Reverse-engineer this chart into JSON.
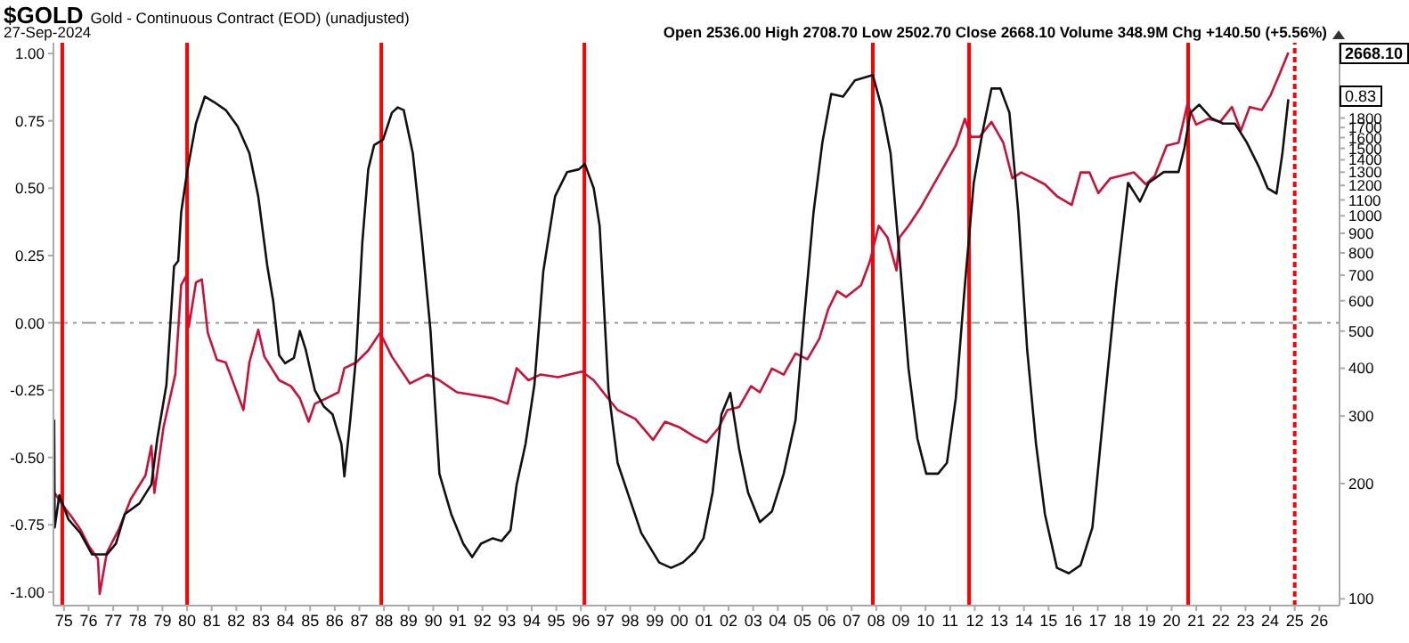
{
  "chart_data": {
    "type": "line",
    "title": "$GOLD",
    "subtitle": "Gold - Continuous Contract (EOD) (unadjusted)",
    "annotations": [
      "27-Sep-2024",
      "Open 2536.00 High 2708.70 Low 2502.70 Close 2668.10 Volume 348.9M Chg +140.50 (+5.56%)",
      "2668.10",
      "0.83"
    ],
    "log": "y2",
    "xlim": [
      1974.57,
      2026.82
    ],
    "xticks": [
      {
        "value": 1975,
        "label": "75"
      },
      {
        "value": 1976,
        "label": "76"
      },
      {
        "value": 1977,
        "label": "77"
      },
      {
        "value": 1978,
        "label": "78"
      },
      {
        "value": 1979,
        "label": "79"
      },
      {
        "value": 1980,
        "label": "80"
      },
      {
        "value": 1981,
        "label": "81"
      },
      {
        "value": 1982,
        "label": "82"
      },
      {
        "value": 1983,
        "label": "83"
      },
      {
        "value": 1984,
        "label": "84"
      },
      {
        "value": 1985,
        "label": "85"
      },
      {
        "value": 1986,
        "label": "86"
      },
      {
        "value": 1987,
        "label": "87"
      },
      {
        "value": 1988,
        "label": "88"
      },
      {
        "value": 1989,
        "label": "89"
      },
      {
        "value": 1990,
        "label": "90"
      },
      {
        "value": 1991,
        "label": "91"
      },
      {
        "value": 1992,
        "label": "92"
      },
      {
        "value": 1993,
        "label": "93"
      },
      {
        "value": 1994,
        "label": "94"
      },
      {
        "value": 1995,
        "label": "95"
      },
      {
        "value": 1996,
        "label": "96"
      },
      {
        "value": 1997,
        "label": "97"
      },
      {
        "value": 1998,
        "label": "98"
      },
      {
        "value": 1999,
        "label": "99"
      },
      {
        "value": 2000,
        "label": "00"
      },
      {
        "value": 2001,
        "label": "01"
      },
      {
        "value": 2002,
        "label": "02"
      },
      {
        "value": 2003,
        "label": "03"
      },
      {
        "value": 2004,
        "label": "04"
      },
      {
        "value": 2005,
        "label": "05"
      },
      {
        "value": 2006,
        "label": "06"
      },
      {
        "value": 2007,
        "label": "07"
      },
      {
        "value": 2008,
        "label": "08"
      },
      {
        "value": 2009,
        "label": "09"
      },
      {
        "value": 2010,
        "label": "10"
      },
      {
        "value": 2011,
        "label": "11"
      },
      {
        "value": 2012,
        "label": "12"
      },
      {
        "value": 2013,
        "label": "13"
      },
      {
        "value": 2014,
        "label": "14"
      },
      {
        "value": 2015,
        "label": "15"
      },
      {
        "value": 2016,
        "label": "16"
      },
      {
        "value": 2017,
        "label": "17"
      },
      {
        "value": 2018,
        "label": "18"
      },
      {
        "value": 2019,
        "label": "19"
      },
      {
        "value": 2020,
        "label": "20"
      },
      {
        "value": 2021,
        "label": "21"
      },
      {
        "value": 2022,
        "label": "22"
      },
      {
        "value": 2023,
        "label": "23"
      },
      {
        "value": 2024,
        "label": "24"
      },
      {
        "value": 2025,
        "label": "25"
      },
      {
        "value": 2026,
        "label": "26"
      }
    ],
    "ylim": [
      -1.05,
      1.04
    ],
    "yticks": [
      {
        "value": 1,
        "label": "1.00"
      },
      {
        "value": 0.75,
        "label": "0.75"
      },
      {
        "value": 0.5,
        "label": "0.50"
      },
      {
        "value": 0.25,
        "label": "0.25"
      },
      {
        "value": 0,
        "label": "0.00"
      },
      {
        "value": -0.25,
        "label": "-0.25"
      },
      {
        "value": -0.5,
        "label": "-0.50"
      },
      {
        "value": -0.75,
        "label": "-0.75"
      },
      {
        "value": -1,
        "label": "-1.00"
      }
    ],
    "y2lim": [
      96,
      2830
    ],
    "y2ticks": [
      100,
      200,
      300,
      400,
      500,
      600,
      700,
      800,
      900,
      1000,
      1100,
      1200,
      1300,
      1400,
      1500,
      1600,
      1700,
      1800
    ],
    "ref_lines": [
      {
        "axis": "y",
        "value": 0,
        "color": "#999999",
        "line_style": "dashed"
      },
      {
        "axis": "x",
        "value": 1974.93,
        "color": "#ff0000",
        "line_style": "solid"
      },
      {
        "axis": "x",
        "value": 1980.0,
        "color": "#ff0000",
        "line_style": "solid"
      },
      {
        "axis": "x",
        "value": 1987.89,
        "color": "#ff0000",
        "line_style": "solid"
      },
      {
        "axis": "x",
        "value": 1996.14,
        "color": "#ff0000",
        "line_style": "solid"
      },
      {
        "axis": "x",
        "value": 2007.86,
        "color": "#ff0000",
        "line_style": "solid"
      },
      {
        "axis": "x",
        "value": 2011.77,
        "color": "#ff0000",
        "line_style": "solid"
      },
      {
        "axis": "x",
        "value": 2020.67,
        "color": "#ff0000",
        "line_style": "solid"
      },
      {
        "axis": "x",
        "value": 2025.0,
        "color": "#ff0000",
        "line_style": "dotted"
      }
    ],
    "series": [
      {
        "axis": "y2",
        "color": "#cc1038",
        "x": [
          1974.62,
          1974.93,
          1975.3,
          1975.66,
          1976.02,
          1976.38,
          1976.45,
          1976.74,
          1977.23,
          1977.71,
          1978.31,
          1978.55,
          1978.67,
          1979.04,
          1979.52,
          1979.76,
          1979.95,
          1980.07,
          1980.36,
          1980.6,
          1980.84,
          1981.21,
          1981.57,
          1981.93,
          1982.29,
          1982.53,
          1982.89,
          1983.14,
          1983.74,
          1984.22,
          1984.58,
          1984.94,
          1985.19,
          1985.67,
          1986.15,
          1986.39,
          1986.87,
          1987.36,
          1987.84,
          1988.32,
          1989.05,
          1989.77,
          1990.25,
          1990.97,
          1991.7,
          1992.42,
          1993.02,
          1993.39,
          1993.87,
          1994.35,
          1995.07,
          1996.04,
          1996.52,
          1997.0,
          1997.49,
          1998.21,
          1998.93,
          1999.42,
          2000.02,
          2000.62,
          2001.1,
          2001.59,
          2001.95,
          2002.43,
          2002.91,
          2003.27,
          2003.76,
          2004.24,
          2004.72,
          2005.2,
          2005.69,
          2006.05,
          2006.41,
          2006.77,
          2007.38,
          2007.74,
          2008.1,
          2008.46,
          2008.82,
          2008.94,
          2009.31,
          2009.79,
          2010.27,
          2010.75,
          2011.23,
          2011.6,
          2011.84,
          2012.2,
          2012.68,
          2013.16,
          2013.53,
          2013.89,
          2014.37,
          2014.85,
          2015.34,
          2015.94,
          2016.3,
          2016.66,
          2017.02,
          2017.51,
          2017.99,
          2018.47,
          2018.95,
          2019.32,
          2019.8,
          2020.28,
          2020.64,
          2021.0,
          2021.49,
          2021.97,
          2022.45,
          2022.81,
          2023.17,
          2023.66,
          2024.02,
          2024.38,
          2024.74
        ],
        "values": [
          189,
          176,
          164,
          152,
          137,
          127,
          103,
          132,
          152,
          182,
          210,
          251,
          189,
          280,
          385,
          659,
          695,
          513,
          670,
          682,
          495,
          421,
          414,
          359,
          311,
          414,
          504,
          429,
          372,
          359,
          334,
          290,
          323,
          334,
          346,
          400,
          414,
          445,
          495,
          429,
          365,
          385,
          372,
          346,
          340,
          334,
          323,
          400,
          372,
          385,
          379,
          392,
          372,
          340,
          311,
          295,
          260,
          290,
          280,
          265,
          256,
          279,
          311,
          317,
          359,
          346,
          399,
          385,
          437,
          422,
          478,
          571,
          636,
          614,
          659,
          760,
          942,
          877,
          720,
          877,
          942,
          1048,
          1188,
          1346,
          1525,
          1791,
          1608,
          1608,
          1759,
          1552,
          1253,
          1298,
          1253,
          1208,
          1125,
          1067,
          1298,
          1298,
          1146,
          1253,
          1274,
          1298,
          1208,
          1274,
          1525,
          1552,
          1959,
          1730,
          1791,
          1759,
          1923,
          1667,
          1923,
          1888,
          2065,
          2339,
          2668.1
        ]
      },
      {
        "axis": "y",
        "color": "#111111",
        "x": [
          1974.6,
          1974.62,
          1974.81,
          1975.18,
          1975.66,
          1976.14,
          1976.74,
          1977.11,
          1977.47,
          1978.07,
          1978.55,
          1978.79,
          1979.16,
          1979.47,
          1979.64,
          1979.76,
          1980.0,
          1980.36,
          1980.72,
          1981.09,
          1981.57,
          1982.05,
          1982.53,
          1982.89,
          1983.26,
          1983.5,
          1983.74,
          1983.98,
          1984.34,
          1984.58,
          1984.82,
          1985.19,
          1985.55,
          1985.91,
          1986.27,
          1986.39,
          1986.63,
          1986.87,
          1987.12,
          1987.36,
          1987.6,
          1987.96,
          1988.32,
          1988.56,
          1988.8,
          1989.17,
          1989.53,
          1989.89,
          1990.25,
          1990.73,
          1991.22,
          1991.58,
          1991.94,
          1992.42,
          1992.78,
          1993.14,
          1993.39,
          1993.75,
          1994.11,
          1994.47,
          1994.95,
          1995.44,
          1995.92,
          1996.16,
          1996.52,
          1996.76,
          1997.12,
          1997.49,
          1997.97,
          1998.45,
          1999.18,
          1999.66,
          2000.14,
          2000.62,
          2000.98,
          2001.35,
          2001.71,
          2002.07,
          2002.43,
          2002.79,
          2003.27,
          2003.76,
          2004.24,
          2004.72,
          2005.08,
          2005.45,
          2005.81,
          2006.17,
          2006.65,
          2007.13,
          2007.86,
          2008.22,
          2008.58,
          2008.94,
          2009.31,
          2009.67,
          2010.03,
          2010.51,
          2010.87,
          2011.23,
          2011.6,
          2011.96,
          2012.32,
          2012.68,
          2013.04,
          2013.41,
          2013.77,
          2014.13,
          2014.49,
          2014.85,
          2015.34,
          2015.82,
          2016.3,
          2016.78,
          2017.27,
          2017.75,
          2018.23,
          2018.71,
          2019.07,
          2019.68,
          2020.28,
          2020.52,
          2020.76,
          2021.12,
          2021.61,
          2022.09,
          2022.57,
          2023.05,
          2023.54,
          2023.9,
          2024.26,
          2024.5,
          2024.74
        ],
        "values": [
          -0.36,
          -0.76,
          -0.64,
          -0.73,
          -0.78,
          -0.86,
          -0.86,
          -0.82,
          -0.71,
          -0.67,
          -0.6,
          -0.43,
          -0.23,
          0.21,
          0.23,
          0.41,
          0.56,
          0.74,
          0.84,
          0.82,
          0.79,
          0.73,
          0.63,
          0.47,
          0.21,
          0.08,
          -0.12,
          -0.15,
          -0.13,
          -0.03,
          -0.1,
          -0.25,
          -0.31,
          -0.34,
          -0.45,
          -0.57,
          -0.36,
          -0.12,
          0.3,
          0.57,
          0.66,
          0.68,
          0.78,
          0.8,
          0.79,
          0.63,
          0.32,
          -0.03,
          -0.56,
          -0.71,
          -0.82,
          -0.87,
          -0.82,
          -0.8,
          -0.81,
          -0.77,
          -0.6,
          -0.45,
          -0.23,
          0.19,
          0.47,
          0.56,
          0.57,
          0.59,
          0.5,
          0.36,
          -0.25,
          -0.52,
          -0.65,
          -0.78,
          -0.89,
          -0.91,
          -0.89,
          -0.85,
          -0.8,
          -0.63,
          -0.34,
          -0.26,
          -0.47,
          -0.63,
          -0.74,
          -0.7,
          -0.56,
          -0.36,
          0.03,
          0.41,
          0.67,
          0.85,
          0.84,
          0.9,
          0.92,
          0.8,
          0.63,
          0.25,
          -0.17,
          -0.43,
          -0.56,
          -0.56,
          -0.52,
          -0.28,
          0.14,
          0.52,
          0.71,
          0.87,
          0.87,
          0.78,
          0.41,
          -0.1,
          -0.45,
          -0.71,
          -0.91,
          -0.93,
          -0.9,
          -0.76,
          -0.3,
          0.14,
          0.52,
          0.45,
          0.52,
          0.56,
          0.56,
          0.65,
          0.78,
          0.81,
          0.76,
          0.74,
          0.74,
          0.67,
          0.58,
          0.5,
          0.48,
          0.63,
          0.83
        ]
      }
    ]
  }
}
